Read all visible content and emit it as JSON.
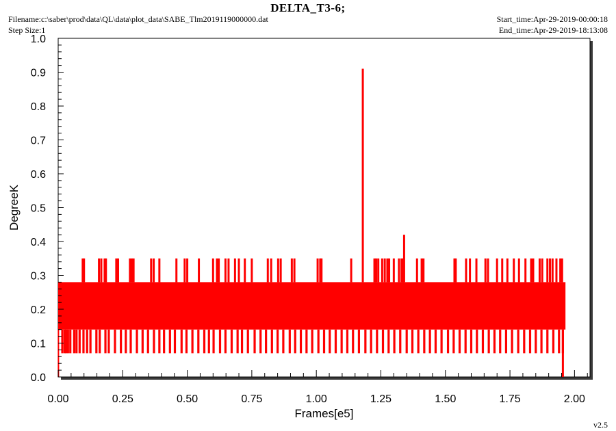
{
  "header": {
    "title": "DELTA_T3-6;",
    "filename_label": "Filename:",
    "filename": "c:\\saber\\prod\\data\\QL\\data\\plot_data\\SABE_Tlm2019119000000.dat",
    "step_label": "Step Size:",
    "step": "1",
    "start_label": "Start_time:",
    "start": "Apr-29-2019-00:00:18",
    "end_label": "End_time:",
    "end": "Apr-29-2019-18:13:08"
  },
  "footer": {
    "version": "v2.5"
  },
  "colors": {
    "series": "#ff0000",
    "axes": "#000000",
    "shadow": "#3a3a3a"
  },
  "chart_data": {
    "type": "line",
    "title": "DELTA_T3-6;",
    "xlabel": "Frames[e5]",
    "ylabel": "DegreeK",
    "xlim": [
      0.0,
      2.06
    ],
    "ylim": [
      0.0,
      1.0
    ],
    "x_ticks": [
      "0.00",
      "0.25",
      "0.50",
      "0.75",
      "1.00",
      "1.25",
      "1.50",
      "1.75",
      "2.00"
    ],
    "y_ticks": [
      "0.0",
      "0.1",
      "0.2",
      "0.3",
      "0.4",
      "0.5",
      "0.6",
      "0.7",
      "0.8",
      "0.9",
      "1.0"
    ],
    "grid": false,
    "series": [
      {
        "band": {
          "x_start": 0.0,
          "x_end": 1.965,
          "low": 0.14,
          "high": 0.28,
          "dense_low": 0.07,
          "dense_high": 0.35
        },
        "low_spikes_x": [
          0.016,
          0.025,
          0.031,
          0.038,
          0.047,
          0.062,
          0.071,
          0.083,
          0.098,
          0.112,
          0.125,
          0.148,
          0.161,
          0.183,
          0.196,
          0.22,
          0.243,
          0.262,
          0.281,
          0.305,
          0.327,
          0.348,
          0.371,
          0.392,
          0.41,
          0.433,
          0.452,
          0.478,
          0.497,
          0.52,
          0.543,
          0.566,
          0.584,
          0.602,
          0.627,
          0.648,
          0.672,
          0.695,
          0.712,
          0.735,
          0.761,
          0.784,
          0.805,
          0.828,
          0.85,
          0.872,
          0.897,
          0.918,
          0.94,
          0.962,
          0.984,
          1.008,
          1.03,
          1.052,
          1.075,
          1.098,
          1.12,
          1.142,
          1.165,
          1.19,
          1.212,
          1.235,
          1.258,
          1.28,
          1.302,
          1.325,
          1.35,
          1.372,
          1.395,
          1.418,
          1.44,
          1.462,
          1.485,
          1.51,
          1.532,
          1.555,
          1.578,
          1.6,
          1.622,
          1.645,
          1.668,
          1.69,
          1.712,
          1.735,
          1.758,
          1.782,
          1.805,
          1.828,
          1.85,
          1.872,
          1.895,
          1.918,
          1.94,
          1.955
        ],
        "high_spikes_x": [
          0.095,
          0.1,
          0.158,
          0.167,
          0.18,
          0.185,
          0.225,
          0.232,
          0.278,
          0.285,
          0.292,
          0.36,
          0.37,
          0.392,
          0.458,
          0.49,
          0.5,
          0.545,
          0.6,
          0.615,
          0.622,
          0.648,
          0.66,
          0.685,
          0.7,
          0.723,
          0.75,
          0.812,
          0.825,
          0.852,
          0.862,
          0.905,
          0.915,
          1.005,
          1.015,
          1.02,
          1.135,
          1.225,
          1.232,
          1.24,
          1.255,
          1.265,
          1.275,
          1.282,
          1.3,
          1.32,
          1.33,
          1.335,
          1.39,
          1.408,
          1.415,
          1.535,
          1.54,
          1.58,
          1.595,
          1.62,
          1.655,
          1.665,
          1.7,
          1.72,
          1.74,
          1.765,
          1.785,
          1.81,
          1.832,
          1.84,
          1.865,
          1.875,
          1.895,
          1.905,
          1.915,
          1.93,
          1.945,
          1.952
        ],
        "notable_points": [
          {
            "x": 1.18,
            "y": 0.91
          },
          {
            "x": 1.34,
            "y": 0.42
          },
          {
            "x": 1.955,
            "y": 0.0
          }
        ]
      }
    ]
  }
}
